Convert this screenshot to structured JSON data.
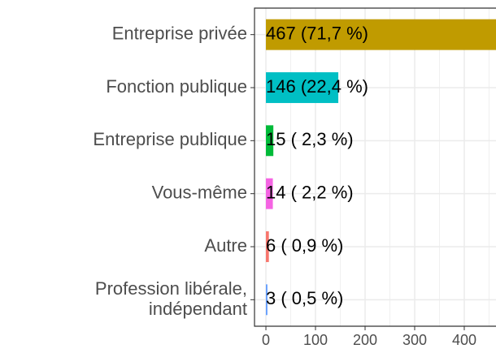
{
  "chart_data": {
    "type": "bar",
    "orientation": "horizontal",
    "categories": [
      "Entreprise privée",
      "Fonction publique",
      "Entreprise publique",
      "Vous-même",
      "Autre",
      "Profession libérale,\nindépendant"
    ],
    "values": [
      467,
      146,
      15,
      14,
      6,
      3
    ],
    "value_labels": [
      "467 (71,7 %)",
      "146 (22,4 %)",
      "15 ( 2,3 %)",
      "14 ( 2,2 %)",
      "6 ( 0,9 %)",
      "3 ( 0,5 %)"
    ],
    "colors": [
      "#C09B00",
      "#00BFC4",
      "#00BA38",
      "#F564E3",
      "#F8766D",
      "#619CFF"
    ],
    "xlim": [
      -23,
      464
    ],
    "xticks": [
      0,
      100,
      200,
      300,
      400
    ],
    "grid": true
  }
}
